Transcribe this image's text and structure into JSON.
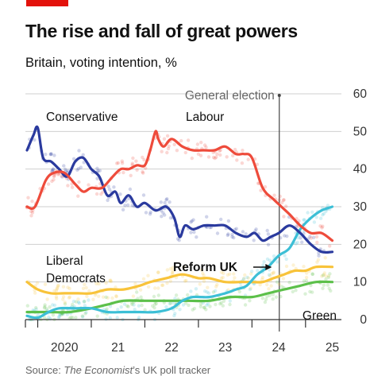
{
  "header": {
    "title": "The rise and fall of great powers",
    "subtitle": "Britain, voting intention, %"
  },
  "source": {
    "prefix": "Source: ",
    "italic": "The Economist",
    "suffix": "’s UK poll tracker"
  },
  "colors": {
    "brand_red": "#e3120b",
    "Conservative": "#2a3a9e",
    "Labour": "#ee4b3b",
    "Liberal Democrats": "#f8c33a",
    "Reform UK": "#3cbfd6",
    "Green": "#5cc04a",
    "grid": "#cfcfcf",
    "axis": "#333333"
  },
  "chart_data": {
    "type": "line",
    "title": "The rise and fall of great powers",
    "subtitle": "Britain, voting intention, %",
    "xlabel": "",
    "ylabel": "",
    "x_ticks": [
      "2020",
      "21",
      "22",
      "23",
      "24",
      "25"
    ],
    "xlim": [
      2019.77,
      2025.67
    ],
    "ylim": [
      0,
      60
    ],
    "y_ticks": [
      0,
      10,
      20,
      30,
      40,
      50,
      60
    ],
    "y_axis_side": "right",
    "grid": true,
    "annotation": {
      "label": "General election",
      "x": 2024.51
    },
    "series": [
      {
        "name": "Conservative",
        "label_lines": [
          "Conservative"
        ],
        "x": [
          2019.8,
          2019.92,
          2020.0,
          2020.1,
          2020.25,
          2020.4,
          2020.55,
          2020.7,
          2020.85,
          2021.0,
          2021.15,
          2021.3,
          2021.45,
          2021.55,
          2021.7,
          2021.85,
          2022.0,
          2022.2,
          2022.4,
          2022.55,
          2022.65,
          2022.75,
          2022.9,
          2023.1,
          2023.3,
          2023.5,
          2023.7,
          2023.9,
          2024.05,
          2024.2,
          2024.35,
          2024.5,
          2024.7,
          2024.9,
          2025.1,
          2025.3,
          2025.5
        ],
        "values": [
          45,
          49,
          51,
          43,
          42,
          40,
          38,
          42,
          43,
          40,
          38,
          33,
          34,
          31,
          33,
          30,
          31,
          29,
          30,
          27,
          22,
          25,
          24,
          25,
          25,
          25,
          23,
          22,
          23,
          21,
          22,
          23,
          25,
          23,
          20,
          18,
          18
        ]
      },
      {
        "name": "Labour",
        "label_lines": [
          "Labour"
        ],
        "x": [
          2019.8,
          2019.95,
          2020.15,
          2020.3,
          2020.5,
          2020.7,
          2020.85,
          2021.0,
          2021.2,
          2021.4,
          2021.55,
          2021.7,
          2021.85,
          2022.0,
          2022.1,
          2022.2,
          2022.25,
          2022.35,
          2022.5,
          2022.7,
          2022.9,
          2023.1,
          2023.3,
          2023.5,
          2023.7,
          2023.85,
          2024.0,
          2024.2,
          2024.4,
          2024.55,
          2024.7,
          2024.9,
          2025.1,
          2025.3,
          2025.5
        ],
        "values": [
          30,
          30,
          37,
          39,
          39,
          36,
          34,
          35,
          35,
          38,
          40,
          40,
          41,
          41,
          45,
          50,
          48,
          46,
          48,
          46,
          45,
          45,
          45,
          46,
          44,
          44,
          43,
          35,
          32,
          30,
          28,
          25,
          23,
          23,
          21
        ]
      },
      {
        "name": "Liberal Democrats",
        "label_lines": [
          "Liberal",
          "Democrats"
        ],
        "x": [
          2019.8,
          2020.0,
          2020.25,
          2020.5,
          2020.75,
          2021.0,
          2021.3,
          2021.6,
          2021.9,
          2022.1,
          2022.4,
          2022.7,
          2023.0,
          2023.2,
          2023.5,
          2023.8,
          2024.0,
          2024.2,
          2024.4,
          2024.6,
          2024.8,
          2025.0,
          2025.2,
          2025.5
        ],
        "values": [
          10,
          8,
          7,
          7,
          7,
          7,
          8,
          8,
          9,
          10,
          11,
          12,
          11,
          11,
          10,
          10,
          10,
          10,
          11,
          12,
          13,
          13,
          14,
          14
        ]
      },
      {
        "name": "Reform UK",
        "label_lines": [
          "Reform UK"
        ],
        "x": [
          2019.8,
          2020.0,
          2020.2,
          2020.4,
          2020.7,
          2021.0,
          2021.3,
          2021.6,
          2021.9,
          2022.2,
          2022.5,
          2022.7,
          2022.9,
          2023.2,
          2023.5,
          2023.7,
          2023.9,
          2024.1,
          2024.3,
          2024.5,
          2024.7,
          2024.9,
          2025.1,
          2025.3,
          2025.5
        ],
        "values": [
          1,
          0.5,
          2,
          3,
          3,
          3,
          2,
          2,
          2,
          2,
          3,
          5,
          6,
          6,
          7,
          8,
          9,
          12,
          14,
          17,
          19,
          24,
          27,
          29,
          30
        ]
      },
      {
        "name": "Green",
        "label_lines": [
          "Green"
        ],
        "x": [
          2019.8,
          2020.2,
          2020.6,
          2021.0,
          2021.3,
          2021.6,
          2022.0,
          2022.4,
          2022.8,
          2023.2,
          2023.6,
          2024.0,
          2024.3,
          2024.6,
          2024.9,
          2025.2,
          2025.5
        ],
        "values": [
          2,
          2,
          2,
          3,
          4,
          5,
          5,
          5,
          5,
          5,
          6,
          6,
          7,
          8,
          9,
          10,
          10
        ]
      }
    ],
    "label_annotations": [
      {
        "series": "Reform UK",
        "bold": true,
        "pointer_to": {
          "x": 2024.4,
          "y": 14
        }
      }
    ]
  }
}
